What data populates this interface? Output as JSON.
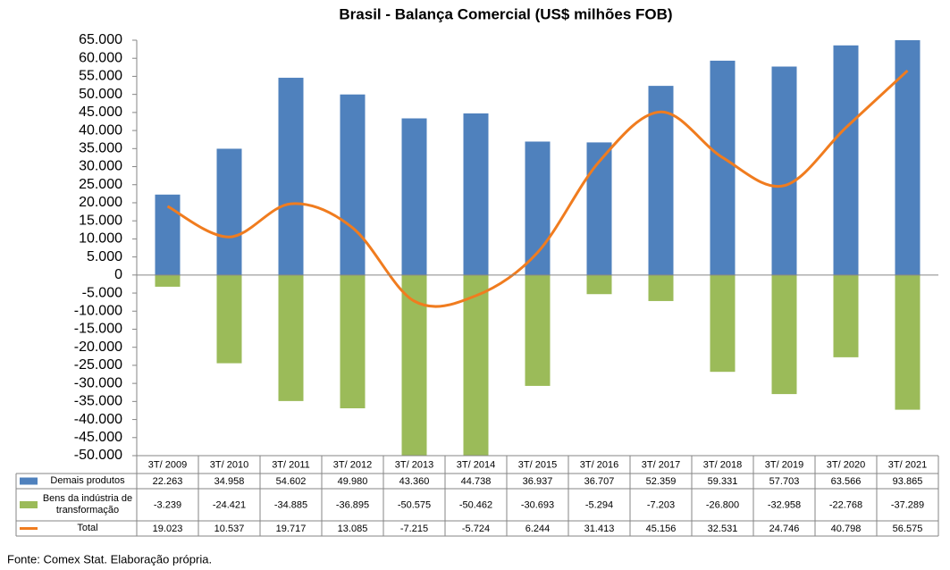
{
  "chart_data": {
    "type": "bar_line_table",
    "title": "Brasil - Balança Comercial (US$ milhões FOB)",
    "source": "Fonte: Comex Stat. Elaboração própria.",
    "categories": [
      "3T/ 2009",
      "3T/ 2010",
      "3T/ 2011",
      "3T/ 2012",
      "3T/ 2013",
      "3T/ 2014",
      "3T/ 2015",
      "3T/ 2016",
      "3T/ 2017",
      "3T/ 2018",
      "3T/ 2019",
      "3T/ 2020",
      "3T/ 2021"
    ],
    "series": [
      {
        "name": "Demais produtos",
        "type": "bar",
        "color": "#4f81bd",
        "values": [
          22263,
          34958,
          54602,
          49980,
          43360,
          44738,
          36937,
          36707,
          52359,
          59331,
          57703,
          63566,
          93865
        ],
        "value_labels": [
          "22.263",
          "34.958",
          "54.602",
          "49.980",
          "43.360",
          "44.738",
          "36.937",
          "36.707",
          "52.359",
          "59.331",
          "57.703",
          "63.566",
          "93.865"
        ]
      },
      {
        "name": "Bens da indústria de transformação",
        "type": "bar",
        "color": "#9bbb59",
        "values": [
          -3239,
          -24421,
          -34885,
          -36895,
          -50575,
          -50462,
          -30693,
          -5294,
          -7203,
          -26800,
          -32958,
          -22768,
          -37289
        ],
        "value_labels": [
          "-3.239",
          "-24.421",
          "-34.885",
          "-36.895",
          "-50.575",
          "-50.462",
          "-30.693",
          "-5.294",
          "-7.203",
          "-26.800",
          "-32.958",
          "-22.768",
          "-37.289"
        ]
      },
      {
        "name": "Total",
        "type": "line",
        "color": "#f07c1f",
        "values": [
          19023,
          10537,
          19717,
          13085,
          -7215,
          -5724,
          6244,
          31413,
          45156,
          32531,
          24746,
          40798,
          56575
        ],
        "value_labels": [
          "19.023",
          "10.537",
          "19.717",
          "13.085",
          "-7.215",
          "-5.724",
          "6.244",
          "31.413",
          "45.156",
          "32.531",
          "24.746",
          "40.798",
          "56.575"
        ]
      }
    ],
    "ylim": [
      -50000,
      65000
    ],
    "yticks": [
      {
        "value": -50000,
        "label": "-50.000"
      },
      {
        "value": -45000,
        "label": "-45.000"
      },
      {
        "value": -40000,
        "label": "-40.000"
      },
      {
        "value": -35000,
        "label": "-35.000"
      },
      {
        "value": -30000,
        "label": "-30.000"
      },
      {
        "value": -25000,
        "label": "-25.000"
      },
      {
        "value": -20000,
        "label": "-20.000"
      },
      {
        "value": -15000,
        "label": "-15.000"
      },
      {
        "value": -10000,
        "label": "-10.000"
      },
      {
        "value": -5000,
        "label": "-5.000"
      },
      0,
      {
        "value": 5000,
        "label": "5.000"
      },
      {
        "value": 10000,
        "label": "10.000"
      },
      {
        "value": 15000,
        "label": "15.000"
      },
      {
        "value": 20000,
        "label": "20.000"
      },
      {
        "value": 25000,
        "label": "25.000"
      },
      {
        "value": 30000,
        "label": "30.000"
      },
      {
        "value": 35000,
        "label": "35.000"
      },
      {
        "value": 40000,
        "label": "40.000"
      },
      {
        "value": 45000,
        "label": "45.000"
      },
      {
        "value": 50000,
        "label": "50.000"
      },
      {
        "value": 55000,
        "label": "55.000"
      },
      {
        "value": 60000,
        "label": "60.000"
      },
      {
        "value": 65000,
        "label": "65.000"
      }
    ],
    "grid": false
  }
}
